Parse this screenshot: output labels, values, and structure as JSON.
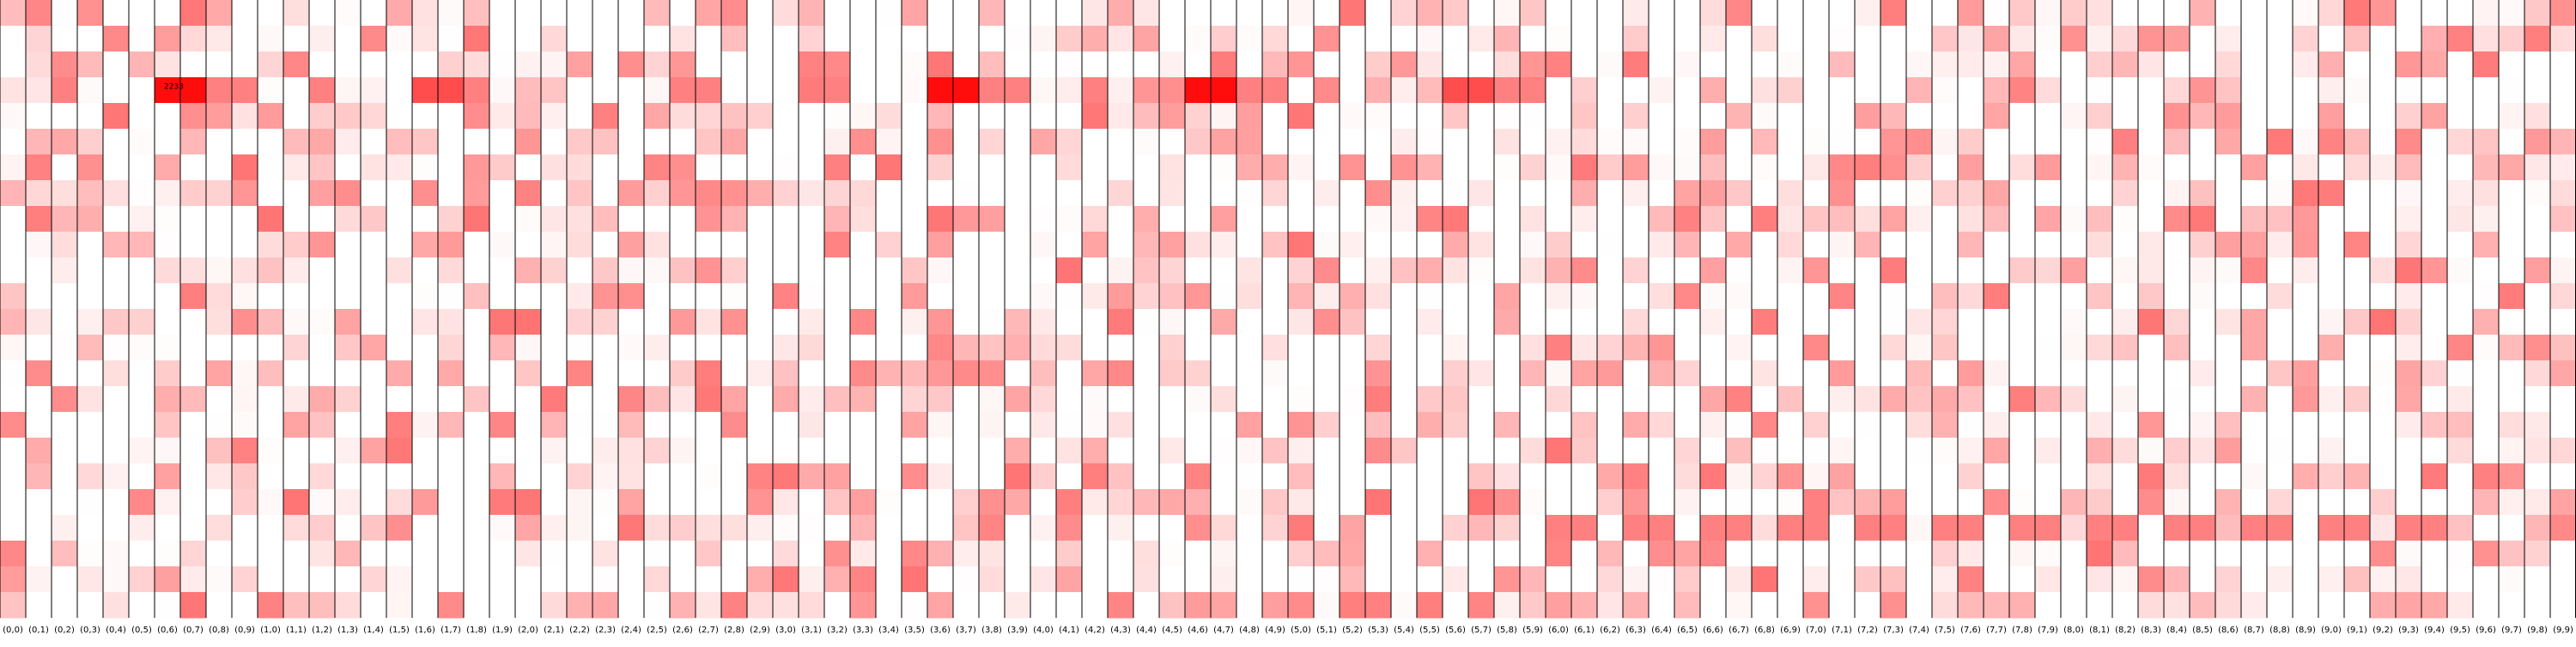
{
  "chart_data": {
    "type": "heatmap",
    "x_labels": [
      "(0,0)",
      "(0,1)",
      "(0,2)",
      "(0,3)",
      "(0,4)",
      "(0,5)",
      "(0,6)",
      "(0,7)",
      "(0,8)",
      "(0,9)",
      "(1,0)",
      "(1,1)",
      "(1,2)",
      "(1,3)",
      "(1,4)",
      "(1,5)",
      "(1,6)",
      "(1,7)",
      "(1,8)",
      "(1,9)",
      "(2,0)",
      "(2,1)",
      "(2,2)",
      "(2,3)",
      "(2,4)",
      "(2,5)",
      "(2,6)",
      "(2,7)",
      "(2,8)",
      "(2,9)",
      "(3,0)",
      "(3,1)",
      "(3,2)",
      "(3,3)",
      "(3,4)",
      "(3,5)",
      "(3,6)",
      "(3,7)",
      "(3,8)",
      "(3,9)",
      "(4,0)",
      "(4,1)",
      "(4,2)",
      "(4,3)",
      "(4,4)",
      "(4,5)",
      "(4,6)",
      "(4,7)",
      "(4,8)",
      "(4,9)",
      "(5,0)",
      "(5,1)",
      "(5,2)",
      "(5,3)",
      "(5,4)",
      "(5,5)",
      "(5,6)",
      "(5,7)",
      "(5,8)",
      "(5,9)",
      "(6,0)",
      "(6,1)",
      "(6,2)",
      "(6,3)",
      "(6,4)",
      "(6,5)",
      "(6,6)",
      "(6,7)",
      "(6,8)",
      "(6,9)",
      "(7,0)",
      "(7,1)",
      "(7,2)",
      "(7,3)",
      "(7,4)",
      "(7,5)",
      "(7,6)",
      "(7,7)",
      "(7,8)",
      "(7,9)",
      "(8,0)",
      "(8,1)",
      "(8,2)",
      "(8,3)",
      "(8,4)",
      "(8,5)",
      "(8,6)",
      "(8,7)",
      "(8,8)",
      "(8,9)",
      "(9,0)",
      "(9,1)",
      "(9,2)",
      "(9,3)",
      "(9,4)",
      "(9,5)",
      "(9,6)",
      "(9,7)",
      "(9,8)",
      "(9,9)"
    ],
    "n_rows": 24,
    "max_label": "2233",
    "max_label_column": "(0,6)",
    "max_label_row": 3,
    "colors": {
      "low": "#ffffff",
      "high": "#ff0000",
      "column_border": "#000000",
      "label_text": "#000000"
    },
    "grid": false,
    "legend": "none"
  }
}
